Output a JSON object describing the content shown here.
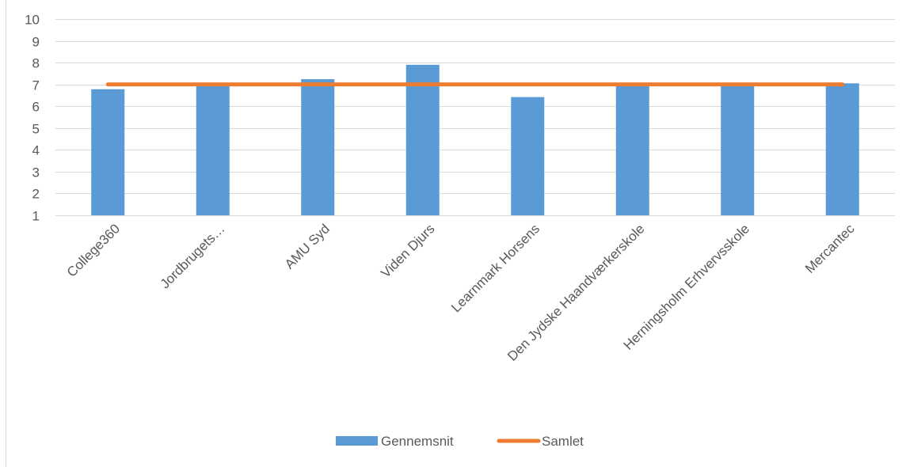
{
  "chart_data": {
    "type": "bar",
    "categories": [
      "College360",
      "Jordbrugets…",
      "AMU Syd",
      "Viden Djurs",
      "Learnmark Horsens",
      "Den Jydske Haandværkerskole",
      "Herningsholm Erhvervsskole",
      "Mercantec"
    ],
    "series": [
      {
        "name": "Gennemsnit",
        "kind": "bar",
        "color": "#5b9bd5",
        "values": [
          6.78,
          6.92,
          7.24,
          7.9,
          6.42,
          7.02,
          7.02,
          7.05
        ]
      },
      {
        "name": "Samlet",
        "kind": "line",
        "color": "#ed7d31",
        "values": [
          7.0,
          7.0,
          7.0,
          7.0,
          7.0,
          7.0,
          7.0,
          7.0
        ]
      }
    ],
    "yticks": [
      1,
      2,
      3,
      4,
      5,
      6,
      7,
      8,
      9,
      10
    ],
    "ylim": [
      1,
      10
    ],
    "grid": true,
    "legend_position": "bottom",
    "title": "",
    "xlabel": "",
    "ylabel": ""
  }
}
